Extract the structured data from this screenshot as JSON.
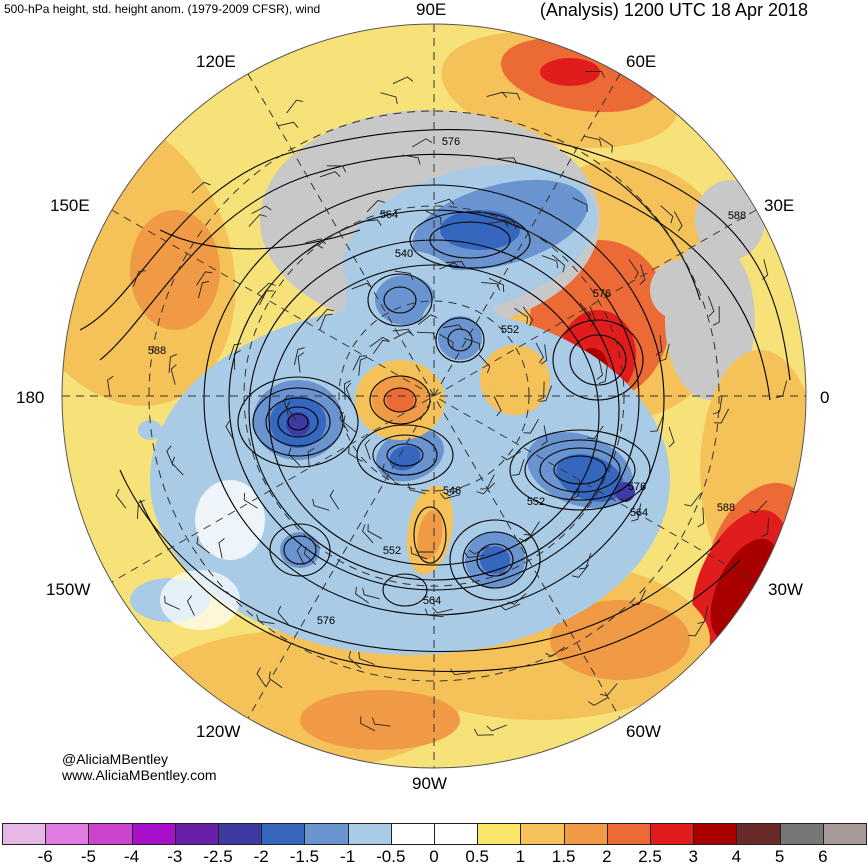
{
  "header": {
    "left_title": "500-hPa height, std. height anom. (1979-2009 CFSR), wind",
    "right_title": "(Analysis) 1200 UTC 18 Apr 2018"
  },
  "longitude_labels": {
    "lon_90e": "90E",
    "lon_60e": "60E",
    "lon_30e": "30E",
    "lon_0": "0",
    "lon_30w": "30W",
    "lon_60w": "60W",
    "lon_90w": "90W",
    "lon_120w": "120W",
    "lon_150w": "150W",
    "lon_180": "180",
    "lon_150e": "150E",
    "lon_120e": "120E"
  },
  "contour_labels": [
    "576",
    "564",
    "540",
    "552",
    "576",
    "588",
    "588",
    "576",
    "564",
    "552",
    "546",
    "552",
    "564",
    "576",
    "588"
  ],
  "credit": {
    "handle": "@AliciaMBentley",
    "site": "www.AliciaMBentley.com"
  },
  "colorbar": {
    "ticks": [
      "-6",
      "-5",
      "-4",
      "-3",
      "-2.5",
      "-2",
      "-1.5",
      "-1",
      "-0.5",
      "0",
      "0.5",
      "1",
      "1.5",
      "2",
      "2.5",
      "3",
      "4",
      "5",
      "6"
    ],
    "colors": [
      "#e6b8e6",
      "#e07be0",
      "#cc44cc",
      "#a811c9",
      "#6a1fa8",
      "#3d3aa3",
      "#3567bf",
      "#6a94cf",
      "#a9cbe6",
      "#ffffff",
      "#ffffff",
      "#fbe66a",
      "#f5c25a",
      "#f09a45",
      "#ec6a35",
      "#e11c1c",
      "#a80000",
      "#6b2a2a",
      "#777777",
      "#a89999"
    ]
  },
  "anomaly_colors": {
    "neg_strong": "#3d3aa3",
    "neg_mid": "#3567bf",
    "neg_light": "#6a94cf",
    "neg_faint": "#a9cbe6",
    "gray": "#c8c8c8",
    "pos_faint": "#fbe66a",
    "pos_light": "#f5c25a",
    "pos_mid": "#f09a45",
    "pos_strong": "#ec6a35",
    "pos_red": "#e11c1c",
    "pos_dark": "#a80000"
  }
}
